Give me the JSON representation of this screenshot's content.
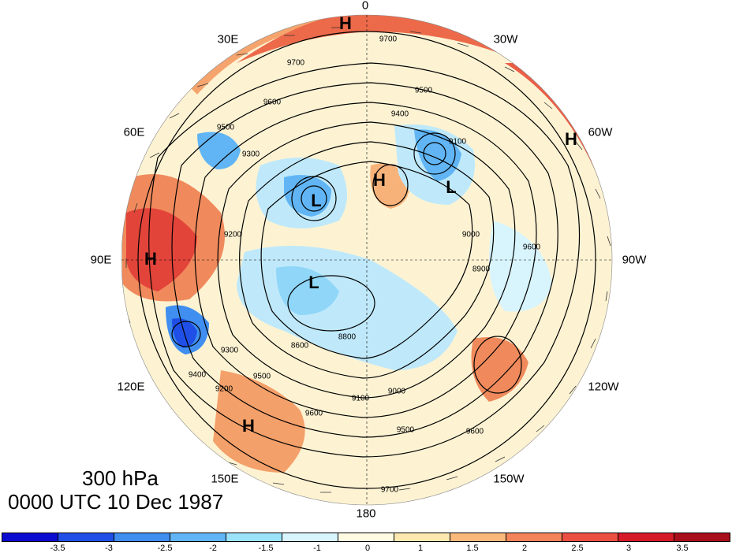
{
  "title": {
    "level": "300 hPa",
    "time": "0000 UTC 10 Dec 1987"
  },
  "longitude_labels": [
    "0",
    "30W",
    "60W",
    "90W",
    "120W",
    "150W",
    "180",
    "150E",
    "120E",
    "90E",
    "60E",
    "30E"
  ],
  "colorbar": {
    "colors": [
      "#0c0bd0",
      "#1f4fe6",
      "#3f8ef0",
      "#61b5f4",
      "#9be3fb",
      "#d8f4fd",
      "#fffbe3",
      "#fde9b0",
      "#f9b97a",
      "#f3835a",
      "#ec5043",
      "#d51a28",
      "#a80f1a"
    ],
    "labels": [
      "-3.5",
      "-3",
      "-2.5",
      "-2",
      "-1.5",
      "-1",
      "0",
      "1",
      "1.5",
      "2",
      "2.5",
      "3",
      "3.5"
    ]
  },
  "systems": [
    {
      "type": "H",
      "label": "H"
    },
    {
      "type": "H",
      "label": "H"
    },
    {
      "type": "H",
      "label": "H"
    },
    {
      "type": "H",
      "label": "H"
    },
    {
      "type": "H",
      "label": "H"
    },
    {
      "type": "L",
      "label": "L"
    },
    {
      "type": "L",
      "label": "L"
    },
    {
      "type": "L",
      "label": "L"
    }
  ],
  "contour_labels": [
    "9700",
    "9700",
    "9600",
    "9500",
    "9400",
    "9300",
    "9100",
    "9000",
    "8900",
    "9600",
    "9500",
    "9400",
    "9300",
    "9200",
    "9100",
    "9000",
    "8800",
    "8600",
    "9200",
    "9500",
    "9700",
    "9600",
    "9500",
    "9600"
  ]
}
